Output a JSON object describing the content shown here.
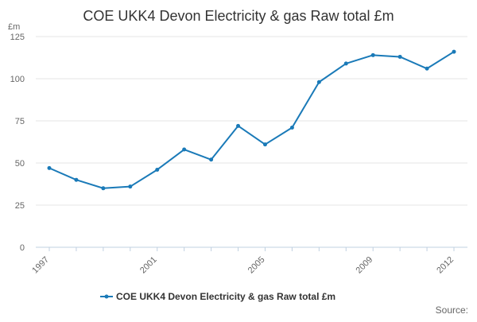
{
  "chart_data": {
    "type": "line",
    "title": "COE UKK4 Devon Electricity & gas Raw total £m",
    "y_unit": "£m",
    "xlabel": "",
    "ylabel": "",
    "x": [
      1997,
      1998,
      1999,
      2000,
      2001,
      2002,
      2003,
      2004,
      2005,
      2006,
      2007,
      2008,
      2009,
      2010,
      2011,
      2012
    ],
    "x_tick_labels": [
      "1997",
      "2001",
      "2005",
      "2009",
      "2012"
    ],
    "y_ticks": [
      0,
      25,
      50,
      75,
      100,
      125
    ],
    "ylim": [
      0,
      125
    ],
    "grid": true,
    "legend_position": "bottom",
    "series": [
      {
        "name": "COE UKK4 Devon Electricity & gas Raw total £m",
        "color": "#1a7ab8",
        "values": [
          47,
          40,
          35,
          36,
          46,
          58,
          52,
          72,
          61,
          71,
          98,
          109,
          114,
          113,
          106,
          116
        ]
      }
    ],
    "source_label": "Source:"
  }
}
